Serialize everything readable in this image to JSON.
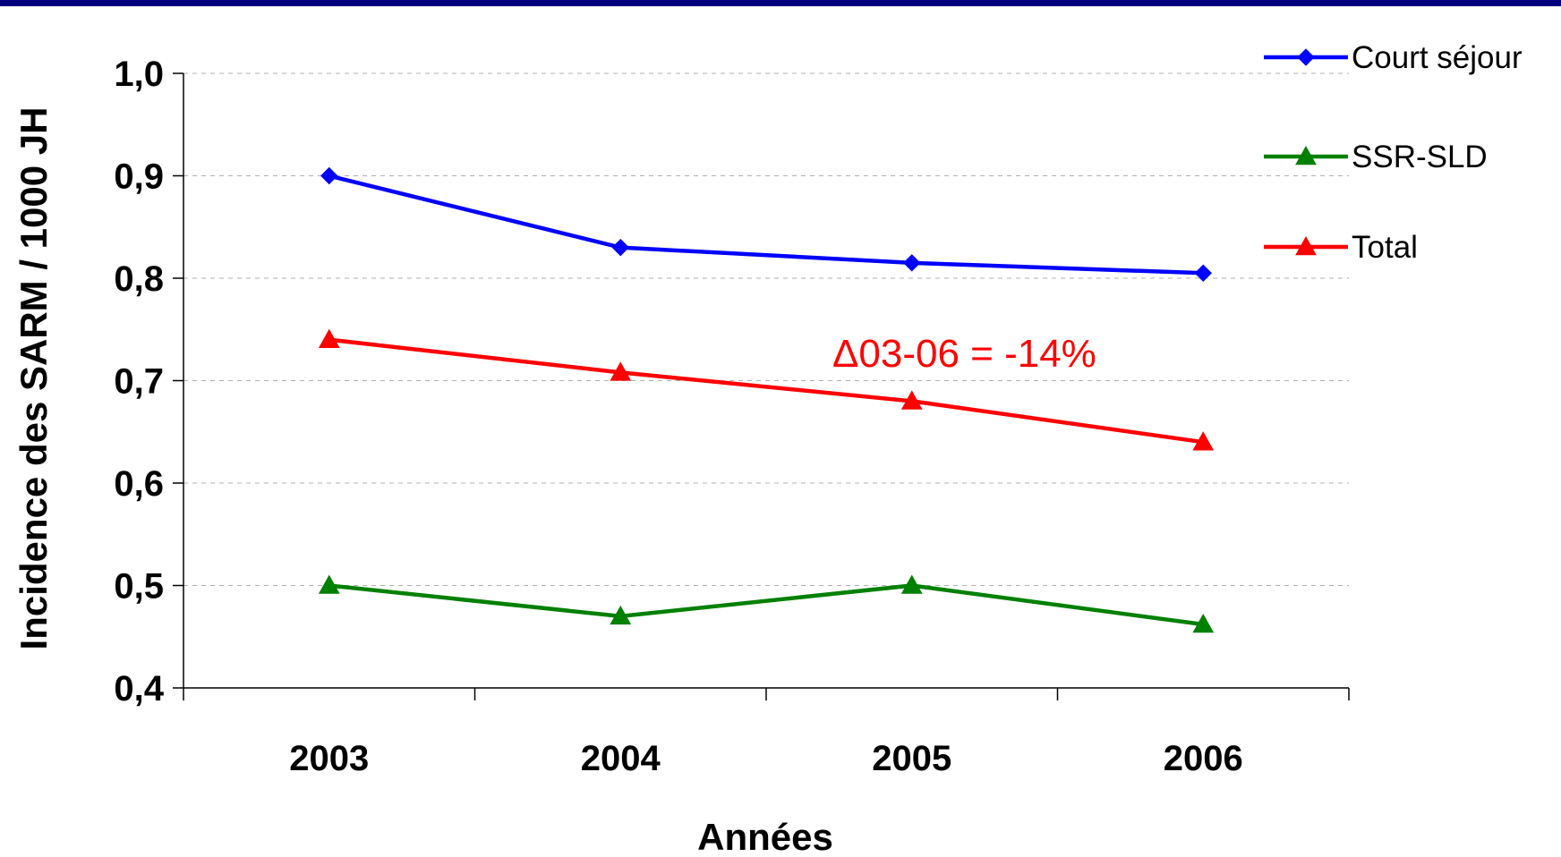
{
  "chart_data": {
    "type": "line",
    "categories": [
      "2003",
      "2004",
      "2005",
      "2006"
    ],
    "series": [
      {
        "name": "Court séjour",
        "values": [
          0.9,
          0.83,
          0.815,
          0.805
        ],
        "color": "#0000FF",
        "marker": "diamond"
      },
      {
        "name": "SSR-SLD",
        "values": [
          0.5,
          0.47,
          0.5,
          0.462
        ],
        "color": "#008000",
        "marker": "triangle"
      },
      {
        "name": "Total",
        "values": [
          0.74,
          0.708,
          0.68,
          0.64
        ],
        "color": "#FF0000",
        "marker": "triangle"
      }
    ],
    "title": "",
    "xlabel": "Années",
    "ylabel": "Incidence des SARM / 1000 JH",
    "ylim": [
      0.4,
      1.0
    ],
    "yticks": [
      "0,4",
      "0,5",
      "0,6",
      "0,7",
      "0,8",
      "0,9",
      "1,0"
    ],
    "grid": true,
    "legend_position": "top-right",
    "annotation": {
      "text": "Δ03-06 = -14%",
      "color": "#FF0000"
    }
  },
  "frame": {
    "top_bar_color": "#000080"
  }
}
